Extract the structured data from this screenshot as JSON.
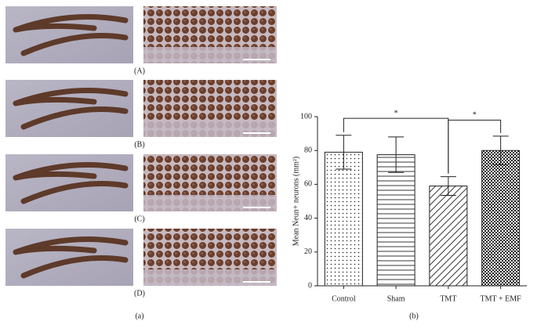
{
  "panel_a": {
    "labels": [
      "(A)",
      "(B)",
      "(C)",
      "(D)"
    ],
    "caption": "(a)"
  },
  "chart_data": {
    "type": "bar",
    "caption": "(b)",
    "ylabel": "Mean Neun+ neurons (mm²)",
    "categories": [
      "Control",
      "Sham",
      "TMT",
      "TMT + EMF"
    ],
    "values": [
      79,
      77.5,
      59,
      80
    ],
    "errors": [
      10,
      10.5,
      5.5,
      8.5
    ],
    "patterns": [
      "dots",
      "horizontal",
      "diagonal",
      "cross"
    ],
    "ylim": [
      0,
      100
    ],
    "yticks": [
      0,
      20,
      40,
      60,
      80,
      100
    ],
    "annotations": [
      {
        "text": "*",
        "from": 0,
        "to": 2,
        "y": 99
      },
      {
        "text": "*",
        "from": 2,
        "to": 3,
        "y": 98
      }
    ]
  }
}
